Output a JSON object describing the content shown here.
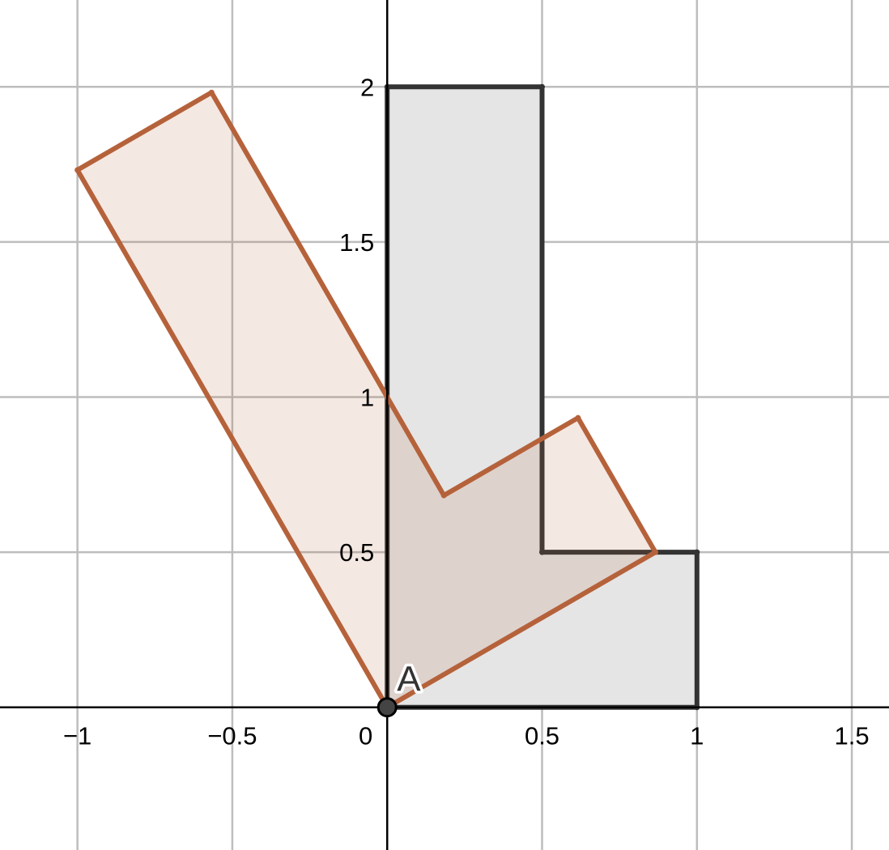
{
  "axes": {
    "x_range": [
      -1.25,
      1.62
    ],
    "y_range": [
      -0.46,
      2.28
    ],
    "x_ticks": [
      {
        "value": -1,
        "label": "−1"
      },
      {
        "value": -0.5,
        "label": "−0.5"
      },
      {
        "value": 0.5,
        "label": "0.5"
      },
      {
        "value": 1,
        "label": "1"
      },
      {
        "value": 1.5,
        "label": "1.5"
      }
    ],
    "y_ticks": [
      {
        "value": 0.5,
        "label": "0.5"
      },
      {
        "value": 1,
        "label": "1"
      },
      {
        "value": 1.5,
        "label": "1.5"
      },
      {
        "value": 2,
        "label": "2"
      }
    ],
    "origin_label": "0",
    "grid": true
  },
  "shapes": [
    {
      "name": "original-l-shape",
      "stroke": "#333333",
      "fill": "#e5e5e5",
      "vertices": [
        [
          0,
          0
        ],
        [
          1,
          0
        ],
        [
          1,
          0.5
        ],
        [
          0.5,
          0.5
        ],
        [
          0.5,
          2
        ],
        [
          0,
          2
        ]
      ]
    },
    {
      "name": "rotated-l-shape",
      "stroke": "#b5623b",
      "fill": "#b5623b",
      "fill_opacity": 0.15,
      "vertices": [
        [
          0,
          0
        ],
        [
          0.866,
          0.5
        ],
        [
          0.616,
          0.933
        ],
        [
          0.183,
          0.683
        ],
        [
          -0.567,
          1.982
        ],
        [
          -1,
          1.732
        ]
      ]
    }
  ],
  "point": {
    "label": "A",
    "x": 0,
    "y": 0,
    "color": "#444444"
  }
}
